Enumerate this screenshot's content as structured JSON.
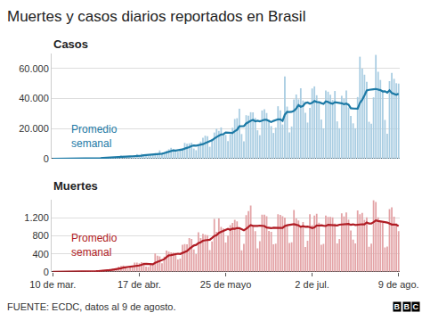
{
  "title": "Muertes y casos diarios reportados en Brasil",
  "source": "FUENTE: ECDC, datos al 9 de agosto.",
  "logo": "BBC",
  "chart_data": [
    {
      "type": "bar",
      "title": "Casos",
      "categories": [
        "10 de mar.",
        null,
        null,
        null,
        null,
        null,
        null,
        null,
        null,
        null,
        null,
        null,
        null,
        null,
        null,
        null,
        null,
        null,
        null,
        null,
        null,
        null,
        null,
        null,
        null,
        null,
        null,
        null,
        null,
        null,
        null,
        null,
        null,
        null,
        null,
        null,
        null,
        null,
        "17 de abr.",
        null,
        null,
        null,
        null,
        null,
        null,
        null,
        null,
        null,
        null,
        null,
        null,
        null,
        null,
        null,
        null,
        null,
        null,
        null,
        null,
        null,
        null,
        null,
        null,
        null,
        null,
        null,
        null,
        null,
        null,
        null,
        null,
        null,
        null,
        null,
        null,
        null,
        "25 de mayo",
        null,
        null,
        null,
        null,
        null,
        null,
        null,
        null,
        null,
        null,
        null,
        null,
        null,
        null,
        null,
        null,
        null,
        null,
        null,
        null,
        null,
        null,
        null,
        null,
        null,
        null,
        null,
        null,
        null,
        null,
        null,
        null,
        null,
        null,
        null,
        null,
        null,
        "2 de jul.",
        null,
        null,
        null,
        null,
        null,
        null,
        null,
        null,
        null,
        null,
        null,
        null,
        null,
        null,
        null,
        null,
        null,
        null,
        null,
        null,
        null,
        null,
        null,
        null,
        null,
        null,
        null,
        null,
        null,
        null,
        null,
        null,
        null,
        null,
        null,
        null,
        null,
        "9 de ago."
      ],
      "series": [
        {
          "type": "bar",
          "color": "#a9cde2",
          "values": [
            0,
            9,
            0,
            25,
            21,
            23,
            79,
            34,
            57,
            137,
            193,
            283,
            224,
            418,
            345,
            310,
            232,
            482,
            502,
            487,
            352,
            323,
            1138,
            1119,
            1074,
            1146,
            1222,
            852,
            926,
            1661,
            2210,
            1930,
            1781,
            1089,
            1442,
            1261,
            1832,
            3058,
            2105,
            3257,
            2917,
            2055,
            1927,
            2336,
            2678,
            3735,
            3503,
            5514,
            3379,
            4613,
            5385,
            6276,
            7218,
            6209,
            4970,
            4588,
            6633,
            6935,
            10503,
            9888,
            10222,
            10611,
            6760,
            5632,
            9258,
            11385,
            13944,
            15305,
            14919,
            7938,
            13140,
            17408,
            19951,
            18508,
            20803,
            16508,
            15813,
            11687,
            16324,
            20599,
            26417,
            26928,
            33274,
            16409,
            11598,
            28936,
            28633,
            30925,
            30830,
            27075,
            18912,
            15654,
            32091,
            32913,
            30412,
            25982,
            21704,
            17110,
            20647,
            34918,
            32188,
            22765,
            54771,
            34666,
            17459,
            21432,
            39436,
            42725,
            39483,
            46860,
            38693,
            30476,
            24052,
            33846,
            46712,
            48105,
            42223,
            37923,
            26051,
            20229,
            45305,
            44571,
            42619,
            39023,
            45048,
            24831,
            20286,
            41857,
            39924,
            45403,
            34177,
            28532,
            23529,
            20257,
            41008,
            67860,
            59961,
            55891,
            51147,
            24578,
            23284,
            40816,
            69074,
            57837,
            52383,
            45392,
            25800,
            16641,
            51603,
            57152,
            53139,
            50230,
            49970
          ]
        },
        {
          "type": "line",
          "name": "Promedio semanal",
          "color": "#1d7aa6",
          "values": [
            0,
            1,
            1,
            5,
            8,
            12,
            22,
            27,
            34,
            52,
            76,
            113,
            142,
            192,
            237,
            273,
            286,
            327,
            358,
            396,
            387,
            384,
            502,
            629,
            713,
            805,
            909,
            982,
            1068,
            1143,
            1299,
            1421,
            1512,
            1493,
            1577,
            1625,
            1649,
            1770,
            1795,
            1991,
            2252,
            2355,
            2450,
            2522,
            2468,
            2701,
            2736,
            3107,
            3296,
            3680,
            4116,
            4630,
            5127,
            5514,
            5437,
            5608,
            5897,
            6118,
            6722,
            7103,
            7676,
            8449,
            8793,
            8650,
            8982,
            9108,
            9687,
            10413,
            11028,
            11197,
            12269,
            13433,
            14657,
            15309,
            16095,
            16322,
            17447,
            17239,
            17084,
            17176,
            18306,
            19181,
            21576,
            21663,
            21650,
            23452,
            24600,
            25244,
            25802,
            24917,
            25273,
            24852,
            25303,
            25915,
            25842,
            25150,
            24383,
            25124,
            25838,
            26242,
            26138,
            25188,
            29300,
            31150,
            31059,
            31171,
            31817,
            33322,
            35710,
            34580,
            35155,
            37015,
            37389,
            36590,
            37159,
            38390,
            37728,
            37618,
            36987,
            36441,
            38078,
            37772,
            36988,
            36531,
            37549,
            37375,
            37382,
            36889,
            36225,
            36622,
            35930,
            33570,
            33387,
            33383,
            33262,
            37110,
            39190,
            42149,
            45380,
            45815,
            46248,
            46220,
            46393,
            46090,
            45590,
            44768,
            44867,
            43918,
            45459,
            43757,
            43086,
            42564,
            43218
          ]
        }
      ],
      "ylim": [
        0,
        70000
      ],
      "yticks": [
        0,
        {
          "value": 20000,
          "label": "20.000"
        },
        {
          "value": 40000,
          "label": "40.000"
        },
        {
          "value": 60000,
          "label": "60.000"
        }
      ],
      "grid": true,
      "tick_labels": "y"
    },
    {
      "type": "bar",
      "title": "Muertes",
      "categories": [
        "10 de mar.",
        null,
        null,
        null,
        null,
        null,
        null,
        null,
        null,
        null,
        null,
        null,
        null,
        null,
        null,
        null,
        null,
        null,
        null,
        null,
        null,
        null,
        null,
        null,
        null,
        null,
        null,
        null,
        null,
        null,
        null,
        null,
        null,
        null,
        null,
        null,
        null,
        null,
        "17 de abr.",
        null,
        null,
        null,
        null,
        null,
        null,
        null,
        null,
        null,
        null,
        null,
        null,
        null,
        null,
        null,
        null,
        null,
        null,
        null,
        null,
        null,
        null,
        null,
        null,
        null,
        null,
        null,
        null,
        null,
        null,
        null,
        null,
        null,
        null,
        null,
        null,
        null,
        "25 de mayo",
        null,
        null,
        null,
        null,
        null,
        null,
        null,
        null,
        null,
        null,
        null,
        null,
        null,
        null,
        null,
        null,
        null,
        null,
        null,
        null,
        null,
        null,
        null,
        null,
        null,
        null,
        null,
        null,
        null,
        null,
        null,
        null,
        null,
        null,
        null,
        null,
        null,
        "2 de jul.",
        null,
        null,
        null,
        null,
        null,
        null,
        null,
        null,
        null,
        null,
        null,
        null,
        null,
        null,
        null,
        null,
        null,
        null,
        null,
        null,
        null,
        null,
        null,
        null,
        null,
        null,
        null,
        null,
        null,
        null,
        null,
        null,
        null,
        null,
        null,
        null,
        null,
        "9 de ago."
      ],
      "series": [
        {
          "type": "bar",
          "color": "#e3a3a6",
          "values": [
            0,
            0,
            0,
            0,
            0,
            0,
            0,
            0,
            1,
            3,
            2,
            5,
            7,
            7,
            9,
            12,
            13,
            18,
            15,
            19,
            25,
            23,
            42,
            40,
            58,
            60,
            73,
            54,
            67,
            114,
            133,
            141,
            115,
            68,
            99,
            105,
            204,
            204,
            188,
            217,
            206,
            115,
            113,
            166,
            165,
            407,
            357,
            346,
            189,
            338,
            474,
            449,
            435,
            428,
            421,
            275,
            296,
            600,
            615,
            610,
            751,
            730,
            496,
            396,
            881,
            749,
            844,
            824,
            816,
            485,
            674,
            1179,
            888,
            1188,
            1001,
            965,
            653,
            807,
            1039,
            1086,
            1156,
            1124,
            956,
            480,
            623,
            1262,
            1349,
            1473,
            1005,
            904,
            525,
            679,
            1272,
            1274,
            1239,
            909,
            892,
            612,
            627,
            1282,
            1269,
            1238,
            1206,
            1022,
            641,
            654,
            1374,
            1185,
            1141,
            990,
            1109,
            552,
            692,
            1280,
            1038,
            1252,
            1290,
            1091,
            602,
            620,
            1254,
            1223,
            1220,
            1214,
            1071,
            631,
            733,
            1300,
            1233,
            1322,
            1163,
            921,
            716,
            632,
            1367,
            1284,
            1311,
            1156,
            1211,
            555,
            627,
            1595,
            1554,
            1212,
            1129,
            1088,
            541,
            561,
            1394,
            1437,
            1226,
            1079,
            905
          ]
        },
        {
          "type": "line",
          "name": "Promedio semanal",
          "color": "#b01c24",
          "values": [
            0,
            0,
            0,
            0,
            0,
            0,
            0,
            0,
            0,
            1,
            1,
            2,
            3,
            4,
            5,
            7,
            8,
            10,
            12,
            13,
            16,
            18,
            22,
            26,
            32,
            38,
            45,
            50,
            56,
            67,
            80,
            92,
            99,
            98,
            105,
            110,
            123,
            133,
            140,
            154,
            174,
            177,
            178,
            173,
            167,
            198,
            218,
            238,
            249,
            281,
            325,
            366,
            370,
            380,
            391,
            403,
            397,
            415,
            439,
            464,
            510,
            554,
            585,
            599,
            639,
            658,
            691,
            701,
            713,
            714,
            754,
            796,
            816,
            865,
            890,
            911,
            935,
            954,
            934,
            962,
            957,
            974,
            973,
            950,
            924,
            956,
            994,
            1039,
            1022,
            1014,
            1020,
            1028,
            1029,
            1018,
            985,
            972,
            970,
            982,
            975,
            976,
            975,
            975,
            1017,
            1035,
            1041,
            1045,
            1059,
            1047,
            1033,
            1002,
            1014,
            1001,
            1006,
            993,
            972,
            988,
            1031,
            1029,
            1035,
            1025,
            1021,
            1047,
            1042,
            1032,
            1029,
            1033,
            1049,
            1056,
            1058,
            1073,
            1066,
            1045,
            1057,
            1043,
            1053,
            1060,
            1058,
            1057,
            1098,
            1074,
            1073,
            1105,
            1144,
            1130,
            1126,
            1109,
            1107,
            1097,
            1068,
            1051,
            1053,
            1046,
            1020
          ]
        }
      ],
      "ylim": [
        0,
        1600
      ],
      "yticks": [
        0,
        400,
        800,
        {
          "value": 1200,
          "label": "1.200"
        }
      ],
      "grid": true
    }
  ]
}
